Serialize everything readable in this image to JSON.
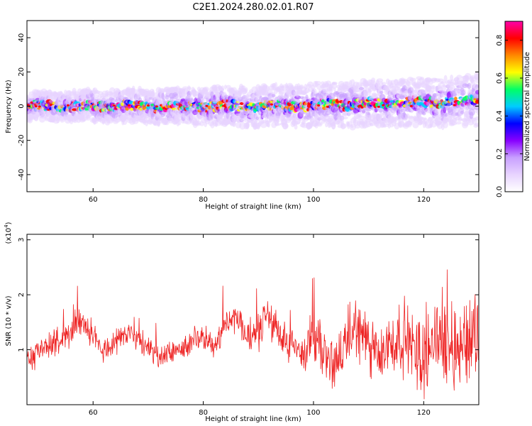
{
  "title": "C2E1.2024.280.02.01.R07",
  "chart_data": [
    {
      "type": "heatmap",
      "xlabel": "Height of straight line (km)",
      "ylabel": "Frequency (Hz)",
      "xlim": [
        48,
        130
      ],
      "ylim": [
        -50,
        50
      ],
      "xticks": [
        60,
        80,
        100,
        120
      ],
      "xtick_labels": [
        "60",
        "80",
        "100",
        "120"
      ],
      "yticks": [
        -40,
        -20,
        0,
        20,
        40
      ],
      "ytick_labels": [
        "-40",
        "-20",
        "0",
        "20",
        "40"
      ],
      "band": {
        "center_hz": 0,
        "half_width_hz_start": 6,
        "half_width_hz_end": 11,
        "center_drift_hz_end": 3
      },
      "colorbar": {
        "label": "Normalized spectral amplitude",
        "range": [
          0.0,
          0.9
        ],
        "ticks": [
          0.0,
          0.2,
          0.4,
          0.6,
          0.8
        ],
        "tick_labels": [
          "0.0",
          "0.2",
          "0.4",
          "0.6",
          "0.8"
        ],
        "colors": [
          "#ffffff",
          "#e8d4ff",
          "#c8a0ff",
          "#8800ff",
          "#0000ff",
          "#00ccff",
          "#00ff66",
          "#ffff00",
          "#ff8800",
          "#ff0000",
          "#ff00aa"
        ]
      }
    },
    {
      "type": "line",
      "xlabel": "Height of straight line (km)",
      "ylabel": "SNR (10 * v/v)",
      "y_multiplier_label": "(x10",
      "y_multiplier_exp": "4",
      "y_multiplier_close": ")",
      "xlim": [
        48,
        130
      ],
      "ylim": [
        0,
        3.1
      ],
      "xticks": [
        60,
        80,
        100,
        120
      ],
      "xtick_labels": [
        "60",
        "80",
        "100",
        "120"
      ],
      "yticks": [
        1,
        2,
        3
      ],
      "ytick_labels": [
        "1",
        "2",
        "3"
      ],
      "color": "#ee2222",
      "series": [
        {
          "x": [
            48,
            50,
            52,
            54,
            56,
            57,
            58,
            60,
            62,
            64,
            66,
            68,
            70,
            72,
            74,
            76,
            78,
            80,
            82,
            84,
            86,
            88,
            90,
            92,
            94,
            96,
            98,
            100,
            102,
            104,
            106,
            108,
            110,
            112,
            114,
            116,
            118,
            120,
            122,
            124,
            126,
            128,
            130
          ],
          "y": [
            0.85,
            0.95,
            1.05,
            1.1,
            1.3,
            1.55,
            1.5,
            1.3,
            1.0,
            1.15,
            1.3,
            1.25,
            0.95,
            0.85,
            0.95,
            1.0,
            1.2,
            1.15,
            1.1,
            1.45,
            1.6,
            1.2,
            1.35,
            1.6,
            1.3,
            1.0,
            0.95,
            1.25,
            0.9,
            0.7,
            1.15,
            1.45,
            1.05,
            0.8,
            1.1,
            1.25,
            1.0,
            0.85,
            1.25,
            1.2,
            1.0,
            1.2,
            1.35
          ]
        }
      ]
    }
  ]
}
